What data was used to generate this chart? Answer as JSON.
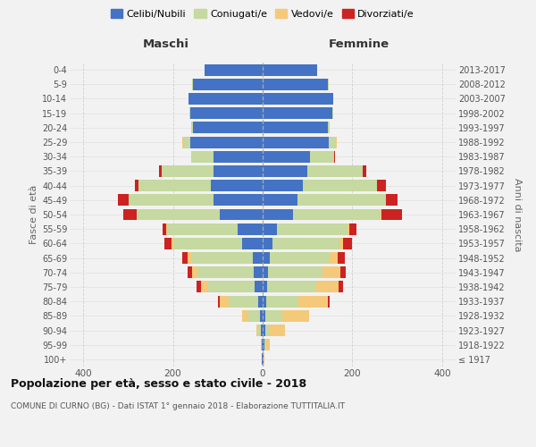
{
  "age_groups": [
    "100+",
    "95-99",
    "90-94",
    "85-89",
    "80-84",
    "75-79",
    "70-74",
    "65-69",
    "60-64",
    "55-59",
    "50-54",
    "45-49",
    "40-44",
    "35-39",
    "30-34",
    "25-29",
    "20-24",
    "15-19",
    "10-14",
    "5-9",
    "0-4"
  ],
  "birth_years": [
    "≤ 1917",
    "1918-1922",
    "1923-1927",
    "1928-1932",
    "1933-1937",
    "1938-1942",
    "1943-1947",
    "1948-1952",
    "1953-1957",
    "1958-1962",
    "1963-1967",
    "1968-1972",
    "1973-1977",
    "1978-1982",
    "1983-1987",
    "1988-1992",
    "1993-1997",
    "1998-2002",
    "2003-2007",
    "2008-2012",
    "2013-2017"
  ],
  "colors": {
    "celibi": "#4472c4",
    "coniugati": "#c5d9a0",
    "vedovi": "#f5c97a",
    "divorziati": "#cc2222"
  },
  "maschi": {
    "celibi": [
      2,
      2,
      4,
      6,
      10,
      18,
      20,
      22,
      45,
      55,
      95,
      110,
      115,
      110,
      110,
      162,
      155,
      162,
      165,
      155,
      130
    ],
    "coniugati": [
      0,
      0,
      5,
      25,
      65,
      105,
      125,
      138,
      155,
      158,
      185,
      188,
      162,
      115,
      50,
      15,
      5,
      2,
      0,
      2,
      0
    ],
    "vedovi": [
      0,
      2,
      5,
      15,
      20,
      15,
      12,
      8,
      4,
      2,
      0,
      0,
      0,
      0,
      0,
      2,
      0,
      0,
      0,
      0,
      0
    ],
    "divorziati": [
      0,
      0,
      0,
      0,
      5,
      10,
      10,
      12,
      15,
      8,
      30,
      25,
      8,
      5,
      0,
      0,
      0,
      0,
      0,
      0,
      0
    ]
  },
  "femmine": {
    "nubili": [
      2,
      3,
      5,
      5,
      8,
      10,
      12,
      15,
      22,
      32,
      68,
      78,
      90,
      100,
      105,
      148,
      145,
      155,
      158,
      145,
      122
    ],
    "coniugate": [
      0,
      2,
      10,
      38,
      72,
      110,
      122,
      135,
      150,
      158,
      195,
      195,
      165,
      122,
      55,
      15,
      5,
      2,
      0,
      2,
      0
    ],
    "vedove": [
      2,
      10,
      35,
      60,
      65,
      50,
      40,
      18,
      8,
      4,
      2,
      2,
      0,
      0,
      0,
      2,
      0,
      0,
      0,
      0,
      0
    ],
    "divorziate": [
      0,
      0,
      0,
      0,
      5,
      10,
      12,
      15,
      20,
      15,
      45,
      25,
      20,
      8,
      2,
      0,
      0,
      0,
      0,
      0,
      0
    ]
  },
  "title": "Popolazione per età, sesso e stato civile - 2018",
  "subtitle": "COMUNE DI CURNO (BG) - Dati ISTAT 1° gennaio 2018 - Elaborazione TUTTITALIA.IT",
  "xlabel_left": "Maschi",
  "xlabel_right": "Femmine",
  "ylabel_left": "Fasce di età",
  "ylabel_right": "Anni di nascita",
  "xlim": 430,
  "bg_color": "#f2f2f2",
  "legend_labels": [
    "Celibi/Nubili",
    "Coniugati/e",
    "Vedovi/e",
    "Divorziati/e"
  ]
}
